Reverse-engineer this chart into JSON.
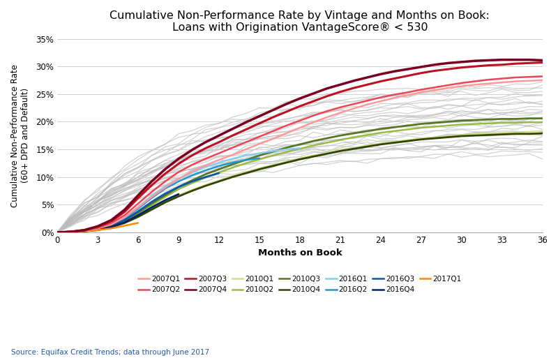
{
  "title": "Cumulative Non-Performance Rate by Vintage and Months on Book:\nLoans with Origination VantageScore® < 530",
  "xlabel": "Months on Book",
  "ylabel": "Cumulative Non-Performance Rate\n(60+ DPD and Default)",
  "source": "Source: Equifax Credit Trends; data through June 2017",
  "xlim": [
    0,
    36
  ],
  "ylim": [
    0,
    0.35
  ],
  "xticks": [
    0,
    3,
    6,
    9,
    12,
    15,
    18,
    21,
    24,
    27,
    30,
    33,
    36
  ],
  "yticks": [
    0,
    0.05,
    0.1,
    0.15,
    0.2,
    0.25,
    0.3,
    0.35
  ],
  "background_color": "#ffffff",
  "grid_color": "#d0d0d0",
  "highlighted_series": [
    {
      "label": "2007Q1",
      "color": "#ff9999",
      "lw": 1.8,
      "x": [
        0,
        1,
        2,
        3,
        4,
        5,
        6,
        7,
        8,
        9,
        10,
        11,
        12,
        13,
        14,
        15,
        16,
        17,
        18,
        19,
        20,
        21,
        22,
        23,
        24,
        25,
        26,
        27,
        28,
        29,
        30,
        31,
        32,
        33,
        34,
        35,
        36
      ],
      "y": [
        0,
        0.001,
        0.003,
        0.007,
        0.014,
        0.027,
        0.045,
        0.064,
        0.081,
        0.097,
        0.11,
        0.121,
        0.131,
        0.14,
        0.15,
        0.16,
        0.169,
        0.179,
        0.189,
        0.199,
        0.208,
        0.216,
        0.224,
        0.231,
        0.237,
        0.243,
        0.248,
        0.253,
        0.257,
        0.261,
        0.264,
        0.267,
        0.269,
        0.271,
        0.273,
        0.274,
        0.275
      ]
    },
    {
      "label": "2007Q2",
      "color": "#ee4455",
      "lw": 1.8,
      "x": [
        0,
        1,
        2,
        3,
        4,
        5,
        6,
        7,
        8,
        9,
        10,
        11,
        12,
        13,
        14,
        15,
        16,
        17,
        18,
        19,
        20,
        21,
        22,
        23,
        24,
        25,
        26,
        27,
        28,
        29,
        30,
        31,
        32,
        33,
        34,
        35,
        36
      ],
      "y": [
        0,
        0.001,
        0.003,
        0.008,
        0.017,
        0.031,
        0.052,
        0.073,
        0.092,
        0.109,
        0.122,
        0.133,
        0.143,
        0.153,
        0.163,
        0.173,
        0.183,
        0.193,
        0.202,
        0.211,
        0.219,
        0.226,
        0.232,
        0.238,
        0.244,
        0.249,
        0.253,
        0.258,
        0.262,
        0.266,
        0.27,
        0.273,
        0.276,
        0.278,
        0.28,
        0.281,
        0.282
      ]
    },
    {
      "label": "2007Q3",
      "color": "#bb1122",
      "lw": 2.2,
      "x": [
        0,
        1,
        2,
        3,
        4,
        5,
        6,
        7,
        8,
        9,
        10,
        11,
        12,
        13,
        14,
        15,
        16,
        17,
        18,
        19,
        20,
        21,
        22,
        23,
        24,
        25,
        26,
        27,
        28,
        29,
        30,
        31,
        32,
        33,
        34,
        35,
        36
      ],
      "y": [
        0,
        0.001,
        0.004,
        0.01,
        0.02,
        0.037,
        0.062,
        0.085,
        0.106,
        0.124,
        0.139,
        0.152,
        0.163,
        0.175,
        0.186,
        0.197,
        0.208,
        0.218,
        0.228,
        0.237,
        0.246,
        0.254,
        0.261,
        0.267,
        0.273,
        0.278,
        0.283,
        0.288,
        0.292,
        0.295,
        0.298,
        0.3,
        0.302,
        0.303,
        0.305,
        0.306,
        0.307
      ]
    },
    {
      "label": "2007Q4",
      "color": "#7a0020",
      "lw": 2.5,
      "x": [
        0,
        1,
        2,
        3,
        4,
        5,
        6,
        7,
        8,
        9,
        10,
        11,
        12,
        13,
        14,
        15,
        16,
        17,
        18,
        19,
        20,
        21,
        22,
        23,
        24,
        25,
        26,
        27,
        28,
        29,
        30,
        31,
        32,
        33,
        34,
        35,
        36
      ],
      "y": [
        0,
        0.001,
        0.004,
        0.011,
        0.022,
        0.041,
        0.067,
        0.092,
        0.114,
        0.133,
        0.149,
        0.163,
        0.175,
        0.187,
        0.199,
        0.21,
        0.221,
        0.232,
        0.242,
        0.251,
        0.26,
        0.267,
        0.274,
        0.28,
        0.286,
        0.291,
        0.295,
        0.299,
        0.303,
        0.306,
        0.308,
        0.31,
        0.311,
        0.312,
        0.312,
        0.312,
        0.311
      ]
    },
    {
      "label": "2010Q1",
      "color": "#ccdd88",
      "lw": 1.5,
      "x": [
        0,
        1,
        2,
        3,
        4,
        5,
        6,
        7,
        8,
        9,
        10,
        11,
        12,
        13,
        14,
        15,
        16,
        17,
        18,
        19,
        20,
        21,
        22,
        23,
        24,
        25,
        26,
        27,
        28,
        29,
        30,
        31,
        32,
        33,
        34,
        35,
        36
      ],
      "y": [
        0,
        0.001,
        0.002,
        0.005,
        0.01,
        0.018,
        0.029,
        0.042,
        0.055,
        0.067,
        0.077,
        0.086,
        0.094,
        0.102,
        0.109,
        0.116,
        0.122,
        0.128,
        0.134,
        0.139,
        0.144,
        0.149,
        0.153,
        0.157,
        0.161,
        0.164,
        0.167,
        0.17,
        0.172,
        0.174,
        0.176,
        0.178,
        0.179,
        0.18,
        0.181,
        0.182,
        0.183
      ]
    },
    {
      "label": "2010Q2",
      "color": "#99bb44",
      "lw": 1.8,
      "x": [
        0,
        1,
        2,
        3,
        4,
        5,
        6,
        7,
        8,
        9,
        10,
        11,
        12,
        13,
        14,
        15,
        16,
        17,
        18,
        19,
        20,
        21,
        22,
        23,
        24,
        25,
        26,
        27,
        28,
        29,
        30,
        31,
        32,
        33,
        34,
        35,
        36
      ],
      "y": [
        0,
        0.001,
        0.002,
        0.006,
        0.011,
        0.021,
        0.034,
        0.049,
        0.064,
        0.078,
        0.089,
        0.099,
        0.108,
        0.117,
        0.125,
        0.132,
        0.139,
        0.145,
        0.151,
        0.157,
        0.162,
        0.167,
        0.172,
        0.176,
        0.18,
        0.183,
        0.186,
        0.189,
        0.191,
        0.193,
        0.195,
        0.196,
        0.197,
        0.198,
        0.198,
        0.199,
        0.199
      ]
    },
    {
      "label": "2010Q3",
      "color": "#557722",
      "lw": 2.0,
      "x": [
        0,
        1,
        2,
        3,
        4,
        5,
        6,
        7,
        8,
        9,
        10,
        11,
        12,
        13,
        14,
        15,
        16,
        17,
        18,
        19,
        20,
        21,
        22,
        23,
        24,
        25,
        26,
        27,
        28,
        29,
        30,
        31,
        32,
        33,
        34,
        35,
        36
      ],
      "y": [
        0,
        0.001,
        0.002,
        0.006,
        0.012,
        0.022,
        0.036,
        0.052,
        0.067,
        0.082,
        0.094,
        0.105,
        0.114,
        0.123,
        0.131,
        0.139,
        0.146,
        0.153,
        0.159,
        0.165,
        0.17,
        0.175,
        0.179,
        0.183,
        0.187,
        0.19,
        0.193,
        0.196,
        0.198,
        0.2,
        0.202,
        0.203,
        0.204,
        0.205,
        0.205,
        0.206,
        0.206
      ]
    },
    {
      "label": "2010Q4",
      "color": "#334400",
      "lw": 2.0,
      "x": [
        0,
        1,
        2,
        3,
        4,
        5,
        6,
        7,
        8,
        9,
        10,
        11,
        12,
        13,
        14,
        15,
        16,
        17,
        18,
        19,
        20,
        21,
        22,
        23,
        24,
        25,
        26,
        27,
        28,
        29,
        30,
        31,
        32,
        33,
        34,
        35,
        36
      ],
      "y": [
        0,
        0.001,
        0.002,
        0.004,
        0.009,
        0.017,
        0.028,
        0.041,
        0.054,
        0.065,
        0.075,
        0.084,
        0.092,
        0.1,
        0.107,
        0.114,
        0.12,
        0.126,
        0.132,
        0.137,
        0.142,
        0.147,
        0.151,
        0.155,
        0.159,
        0.162,
        0.165,
        0.168,
        0.17,
        0.172,
        0.174,
        0.175,
        0.176,
        0.177,
        0.178,
        0.178,
        0.179
      ]
    },
    {
      "label": "2016Q1",
      "color": "#88ccee",
      "lw": 1.8,
      "x": [
        0,
        1,
        2,
        3,
        4,
        5,
        6,
        7,
        8,
        9,
        10,
        11,
        12,
        13,
        14,
        15,
        16,
        17,
        18
      ],
      "y": [
        0,
        0.001,
        0.003,
        0.007,
        0.014,
        0.027,
        0.046,
        0.066,
        0.083,
        0.097,
        0.108,
        0.118,
        0.126,
        0.133,
        0.139,
        0.143,
        0.147,
        0.15,
        0.152
      ]
    },
    {
      "label": "2016Q2",
      "color": "#2299cc",
      "lw": 1.8,
      "x": [
        0,
        1,
        2,
        3,
        4,
        5,
        6,
        7,
        8,
        9,
        10,
        11,
        12,
        13,
        14,
        15
      ],
      "y": [
        0,
        0.001,
        0.003,
        0.007,
        0.013,
        0.025,
        0.043,
        0.062,
        0.079,
        0.092,
        0.103,
        0.112,
        0.12,
        0.126,
        0.131,
        0.134
      ]
    },
    {
      "label": "2016Q3",
      "color": "#1155aa",
      "lw": 2.0,
      "x": [
        0,
        1,
        2,
        3,
        4,
        5,
        6,
        7,
        8,
        9,
        10,
        11,
        12
      ],
      "y": [
        0,
        0.001,
        0.002,
        0.006,
        0.012,
        0.022,
        0.038,
        0.055,
        0.07,
        0.082,
        0.092,
        0.1,
        0.107
      ]
    },
    {
      "label": "2016Q4",
      "color": "#002266",
      "lw": 2.0,
      "x": [
        0,
        1,
        2,
        3,
        4,
        5,
        6,
        7,
        8,
        9
      ],
      "y": [
        0,
        0.001,
        0.002,
        0.005,
        0.01,
        0.018,
        0.031,
        0.045,
        0.058,
        0.069
      ]
    },
    {
      "label": "2017Q1",
      "color": "#ff8800",
      "lw": 1.8,
      "x": [
        0,
        1,
        2,
        3,
        4,
        5,
        6
      ],
      "y": [
        0,
        0.001,
        0.002,
        0.004,
        0.007,
        0.012,
        0.017
      ]
    }
  ],
  "gray_color": "#bbbbbb",
  "gray_alpha": 0.65,
  "gray_lw": 0.9
}
